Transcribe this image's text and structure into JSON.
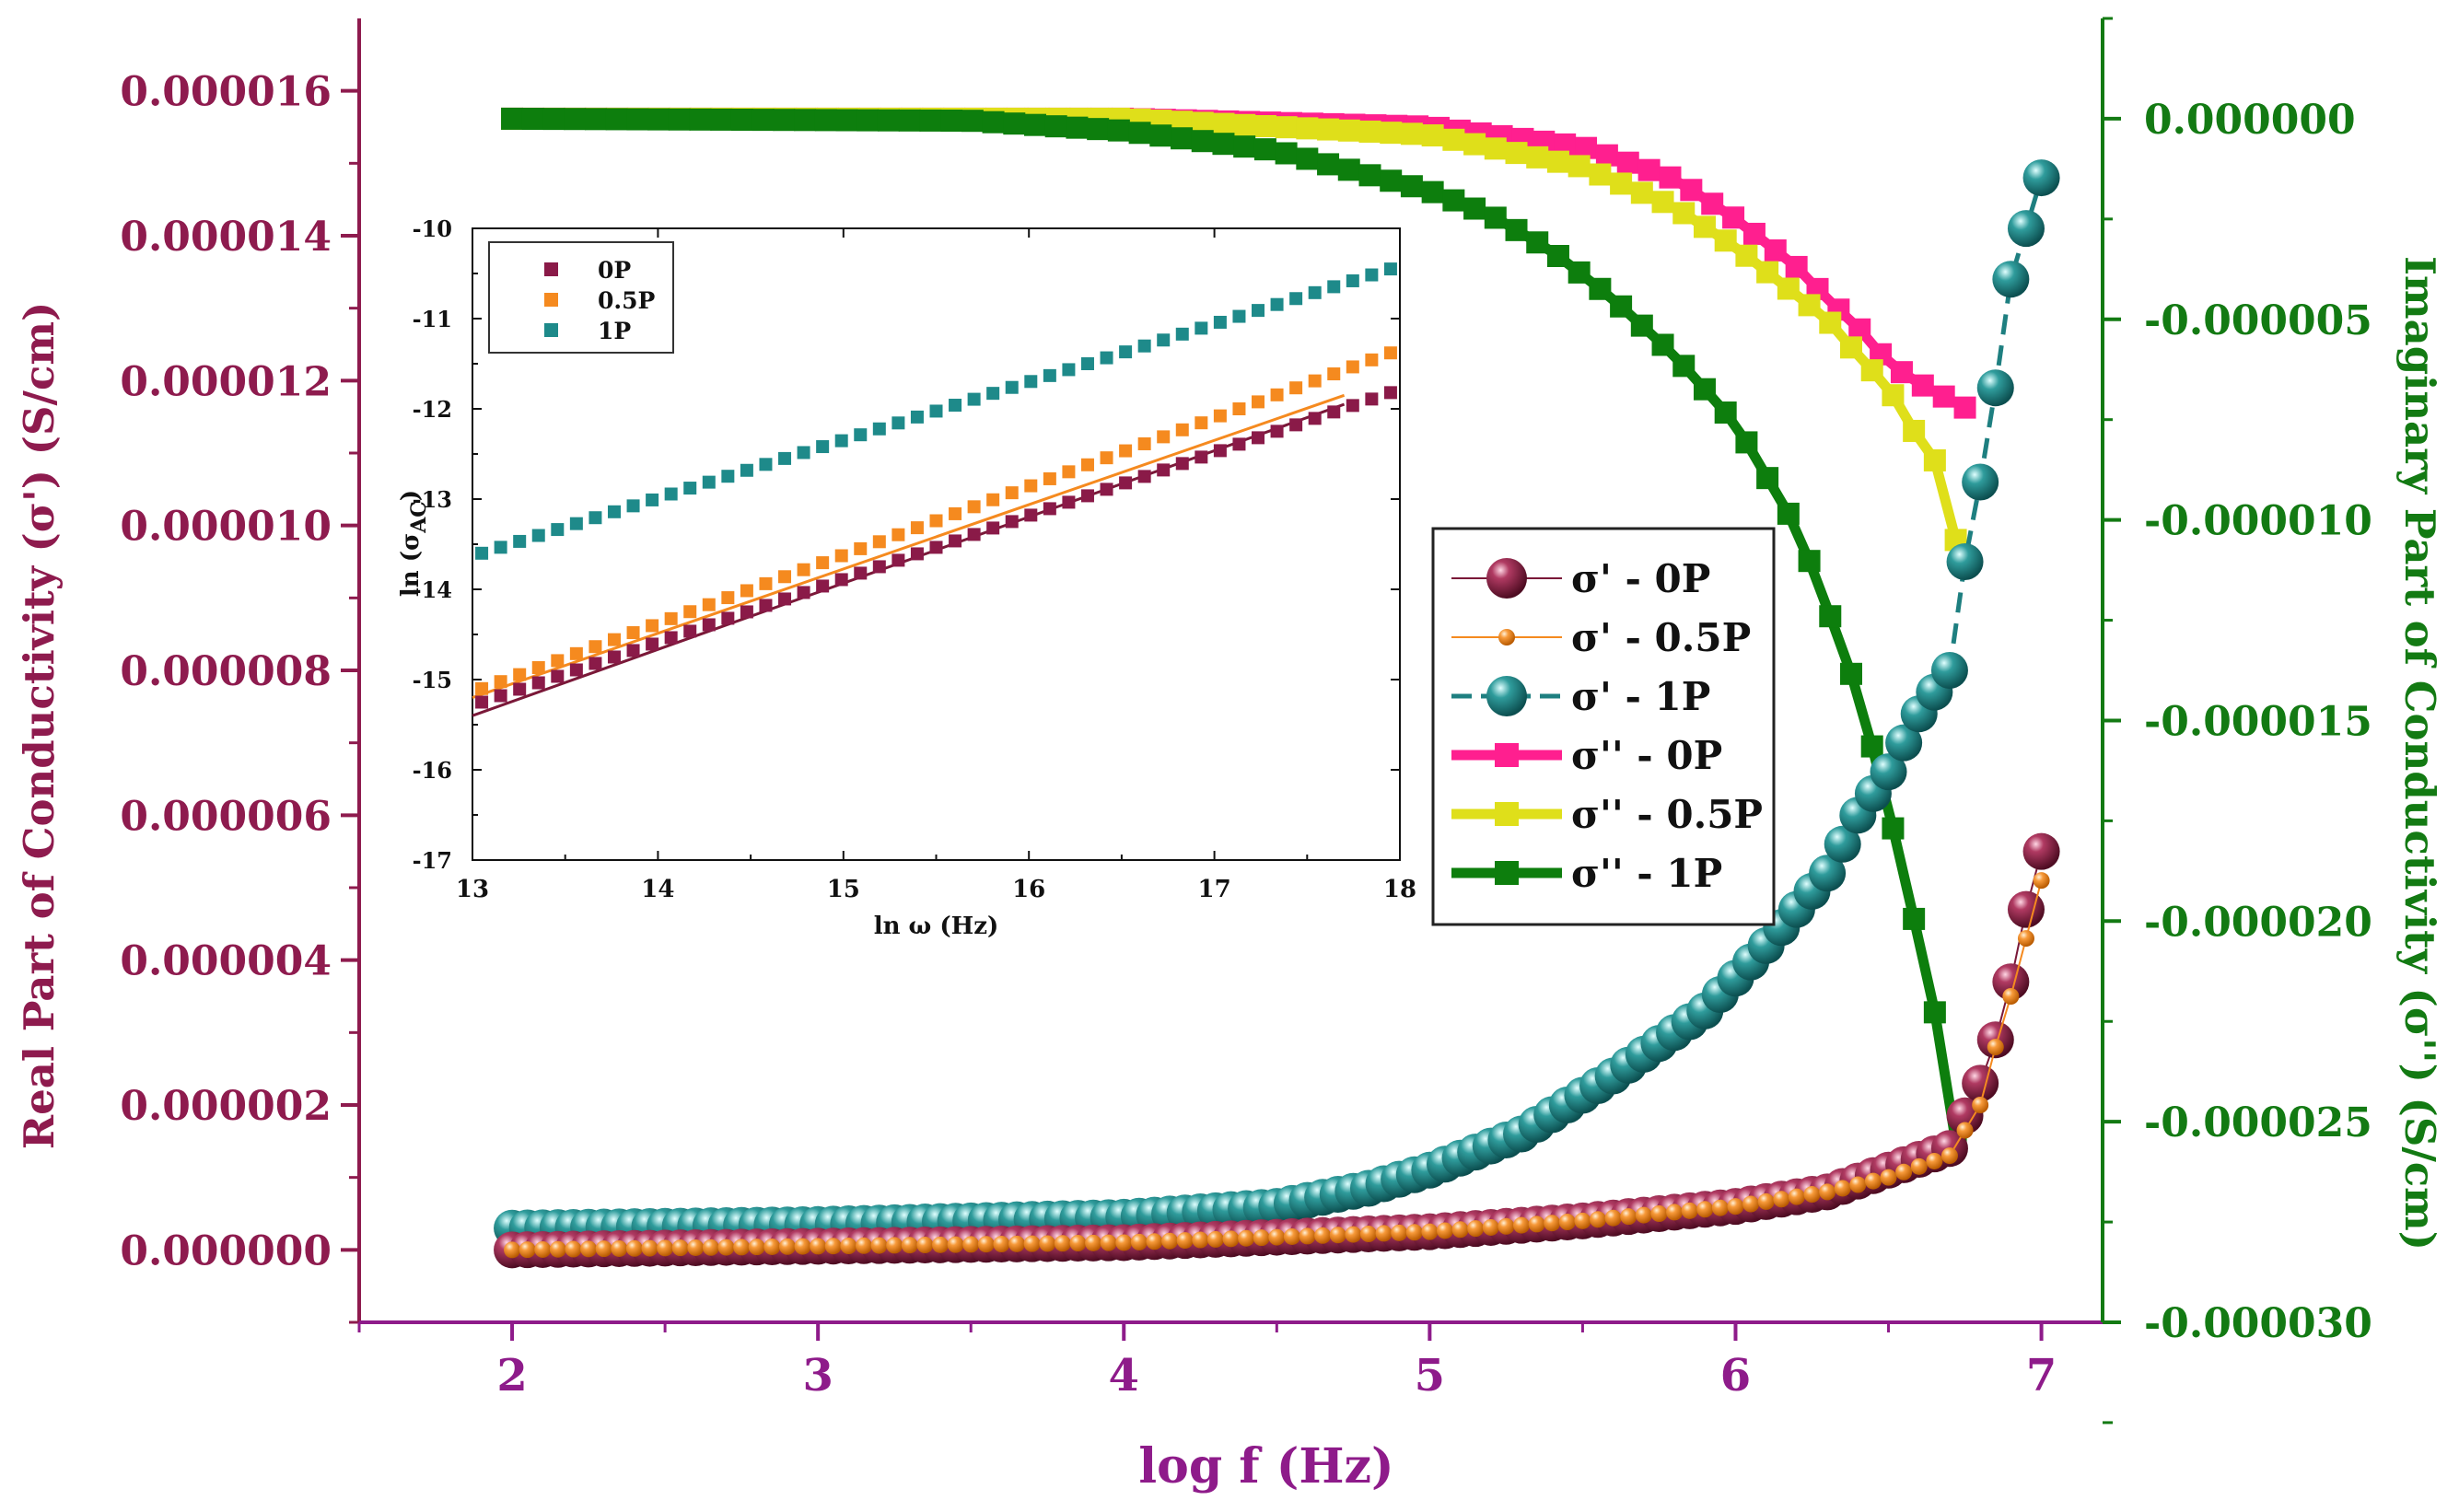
{
  "chart_data": {
    "type": "scatter",
    "xlabel": "log f (Hz)",
    "ylabel_left": "Real Part of Conductivity (σ') (S/cm)",
    "ylabel_right": "Imaginary Part of Conductivity (σ'') (S/cm)",
    "xlim": [
      1.5,
      7.2
    ],
    "ylim_left": [
      -1e-06,
      1.7e-05
    ],
    "ylim_right": [
      -3e-05,
      2.5e-06
    ],
    "x_ticks": [
      "2",
      "3",
      "4",
      "5",
      "6",
      "7"
    ],
    "y_left_ticks": [
      "0.000000",
      "0.000002",
      "0.000004",
      "0.000006",
      "0.000008",
      "0.000010",
      "0.000012",
      "0.000014",
      "0.000016"
    ],
    "y_right_ticks": [
      "0.000000",
      "-0.000005",
      "-0.000010",
      "-0.000015",
      "-0.000020",
      "-0.000025",
      "-0.000030"
    ],
    "colors": {
      "left_axis": "#8e1b4e",
      "x_axis": "#8e1b8a",
      "right_axis": "#137a13"
    },
    "legend": [
      {
        "label": "σ' - 0P",
        "color": "#7a1838",
        "marker": "sphere-large"
      },
      {
        "label": "σ' - 0.5P",
        "color": "#f58a1f",
        "marker": "sphere-small"
      },
      {
        "label": "σ' - 1P",
        "color": "#1e7f80",
        "marker": "sphere-large",
        "dashed": true
      },
      {
        "label": "σ'' - 0P",
        "color": "#ff1f8f",
        "marker": "square"
      },
      {
        "label": "σ'' - 0.5P",
        "color": "#dfdf1a",
        "marker": "square"
      },
      {
        "label": "σ'' - 1P",
        "color": "#0d7e0d",
        "marker": "square"
      }
    ],
    "series_real": [
      {
        "name": "σ' - 0P",
        "x_start": 2.0,
        "x_end": 7.0,
        "points": 101,
        "anchors": [
          [
            2.0,
            0.0
          ],
          [
            4.0,
            1e-07
          ],
          [
            5.0,
            2.5e-07
          ],
          [
            5.5,
            4e-07
          ],
          [
            6.0,
            6e-07
          ],
          [
            6.3,
            8e-07
          ],
          [
            6.5,
            1.1e-06
          ],
          [
            6.7,
            1.4e-06
          ],
          [
            6.8,
            2.3e-06
          ],
          [
            6.85,
            2.9e-06
          ],
          [
            6.9,
            3.7e-06
          ],
          [
            6.95,
            4.7e-06
          ],
          [
            7.0,
            5.5e-06
          ]
        ]
      },
      {
        "name": "σ' - 0.5P",
        "x_start": 2.0,
        "x_end": 7.0,
        "points": 101,
        "anchors": [
          [
            2.0,
            0.0
          ],
          [
            4.0,
            1e-07
          ],
          [
            5.0,
            2.5e-07
          ],
          [
            5.5,
            4e-07
          ],
          [
            6.0,
            6e-07
          ],
          [
            6.3,
            8e-07
          ],
          [
            6.5,
            1e-06
          ],
          [
            6.7,
            1.3e-06
          ],
          [
            6.8,
            2e-06
          ],
          [
            6.85,
            2.8e-06
          ],
          [
            6.9,
            3.5e-06
          ],
          [
            6.95,
            4.3e-06
          ],
          [
            7.0,
            5.1e-06
          ]
        ]
      },
      {
        "name": "σ' - 1P",
        "x_start": 2.0,
        "x_end": 7.0,
        "points": 101,
        "anchors": [
          [
            2.0,
            3e-07
          ],
          [
            3.0,
            3.5e-07
          ],
          [
            4.0,
            4.5e-07
          ],
          [
            4.5,
            6e-07
          ],
          [
            4.8,
            8.5e-07
          ],
          [
            5.0,
            1.1e-06
          ],
          [
            5.3,
            1.6e-06
          ],
          [
            5.6,
            2.4e-06
          ],
          [
            5.9,
            3.3e-06
          ],
          [
            6.1,
            4.2e-06
          ],
          [
            6.3,
            5.2e-06
          ],
          [
            6.4,
            6e-06
          ],
          [
            6.5,
            6.6e-06
          ],
          [
            6.6,
            7.4e-06
          ],
          [
            6.7,
            8e-06
          ],
          [
            6.75,
            9.5e-06
          ],
          [
            6.8,
            1.06e-05
          ],
          [
            6.85,
            1.19e-05
          ],
          [
            6.9,
            1.34e-05
          ],
          [
            7.0,
            1.48e-05
          ]
        ]
      }
    ],
    "series_imag": [
      {
        "name": "σ'' - 0P",
        "x_start": 2.0,
        "x_end": 6.75,
        "points": 70,
        "anchors": [
          [
            2.0,
            0.0
          ],
          [
            4.0,
            0.0
          ],
          [
            5.0,
            -2e-07
          ],
          [
            5.5,
            -7e-07
          ],
          [
            5.8,
            -1.5e-06
          ],
          [
            6.0,
            -2.5e-06
          ],
          [
            6.2,
            -3.7e-06
          ],
          [
            6.3,
            -4.5e-06
          ],
          [
            6.4,
            -5.2e-06
          ],
          [
            6.5,
            -6.1e-06
          ],
          [
            6.6,
            -6.6e-06
          ],
          [
            6.7,
            -7e-06
          ],
          [
            6.75,
            -7.2e-06
          ]
        ]
      },
      {
        "name": "σ'' - 0.5P",
        "x_start": 2.0,
        "x_end": 6.72,
        "points": 70,
        "anchors": [
          [
            2.0,
            0.0
          ],
          [
            4.0,
            0.0
          ],
          [
            5.0,
            -4e-07
          ],
          [
            5.5,
            -1.2e-06
          ],
          [
            5.8,
            -2.2e-06
          ],
          [
            6.0,
            -3.2e-06
          ],
          [
            6.2,
            -4.4e-06
          ],
          [
            6.3,
            -5e-06
          ],
          [
            6.4,
            -5.9e-06
          ],
          [
            6.5,
            -6.7e-06
          ],
          [
            6.6,
            -8e-06
          ],
          [
            6.7,
            -9e-06
          ],
          [
            6.72,
            -1.05e-05
          ]
        ]
      },
      {
        "name": "σ'' - 1P",
        "x_start": 2.0,
        "x_end": 6.72,
        "points": 70,
        "anchors": [
          [
            2.0,
            0.0
          ],
          [
            3.5,
            -5e-08
          ],
          [
            4.0,
            -3e-07
          ],
          [
            4.5,
            -8e-07
          ],
          [
            5.0,
            -1.8e-06
          ],
          [
            5.2,
            -2.4e-06
          ],
          [
            5.4,
            -3.3e-06
          ],
          [
            5.6,
            -4.5e-06
          ],
          [
            5.8,
            -5.9e-06
          ],
          [
            6.0,
            -7.6e-06
          ],
          [
            6.1,
            -8.9e-06
          ],
          [
            6.2,
            -1.02e-05
          ],
          [
            6.3,
            -1.22e-05
          ],
          [
            6.4,
            -1.43e-05
          ],
          [
            6.5,
            -1.72e-05
          ],
          [
            6.6,
            -2.05e-05
          ],
          [
            6.65,
            -2.22e-05
          ],
          [
            6.7,
            -2.45e-05
          ],
          [
            6.72,
            -2.55e-05
          ]
        ]
      }
    ],
    "inset": {
      "type": "scatter",
      "xlabel": "ln ω (Hz)",
      "ylabel": "ln (σ",
      "ylabel_sub": "AC",
      "ylabel_close": ")",
      "xlim": [
        13,
        18
      ],
      "ylim": [
        -17,
        -10
      ],
      "x_ticks": [
        "13",
        "14",
        "15",
        "16",
        "17",
        "18"
      ],
      "y_ticks": [
        "-10",
        "-11",
        "-12",
        "-13",
        "-14",
        "-15",
        "-16",
        "-17"
      ],
      "legend": [
        {
          "label": "0P",
          "color": "#8a1a48"
        },
        {
          "label": "0.5P",
          "color": "#f58a1f"
        },
        {
          "label": "1P",
          "color": "#1e8a8a"
        }
      ],
      "series": [
        {
          "name": "0P",
          "x_start": 13.05,
          "x_end": 17.95,
          "points": 49,
          "y_start": -15.25,
          "y_end": -11.82
        },
        {
          "name": "0.5P",
          "x_start": 13.05,
          "x_end": 17.95,
          "points": 49,
          "y_start": -15.1,
          "y_end": -11.38
        },
        {
          "name": "1P",
          "x_start": 13.05,
          "x_end": 17.95,
          "points": 49,
          "y_start": -13.6,
          "y_end": -10.45
        }
      ],
      "fit_lines": [
        {
          "name": "0P fit",
          "x": [
            13.0,
            17.7
          ],
          "y": [
            -15.4,
            -11.95
          ],
          "color": "#7a1838"
        },
        {
          "name": "0.5P fit",
          "x": [
            13.0,
            17.7
          ],
          "y": [
            -15.2,
            -11.85
          ],
          "color": "#f58a1f"
        }
      ]
    }
  }
}
